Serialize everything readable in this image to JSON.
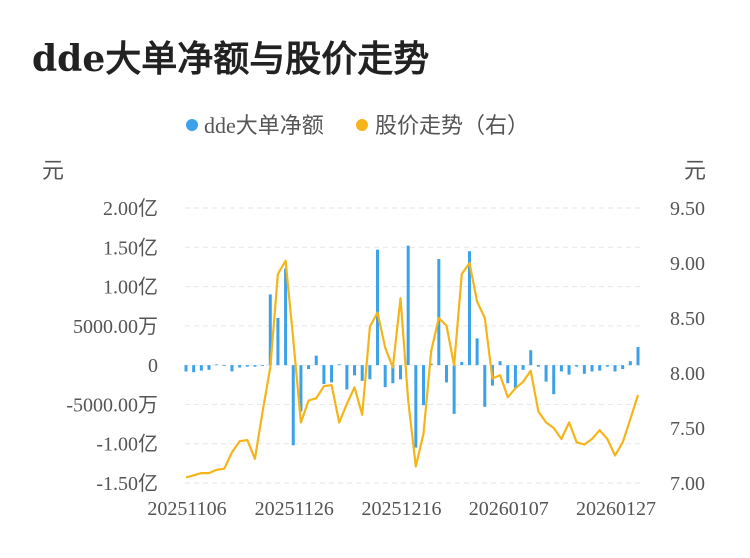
{
  "title": "dde大单净额与股价走势",
  "chart_data": {
    "type": "bar+line",
    "title": "dde大单净额与股价走势",
    "legend_position": "top-center",
    "legend": [
      {
        "name": "dde大单净额",
        "color": "#3ba1e8",
        "marker": "dot"
      },
      {
        "name": "股价走势（右）",
        "color": "#f5b51a",
        "marker": "dot"
      }
    ],
    "left_axis": {
      "unit": "元",
      "ylim": [
        -15000,
        20000
      ],
      "ticks": [
        20000,
        15000,
        10000,
        5000,
        0,
        -5000,
        -10000,
        -15000
      ],
      "tick_labels": [
        "2.00亿",
        "1.50亿",
        "1.00亿",
        "5000.00万",
        "0",
        "-5000.00万",
        "-1.00亿",
        "-1.50亿"
      ]
    },
    "right_axis": {
      "unit": "元",
      "ylim": [
        7.0,
        9.5
      ],
      "ticks": [
        9.5,
        9.0,
        8.5,
        8.0,
        7.5,
        7.0
      ],
      "tick_labels": [
        "9.50",
        "9.00",
        "8.50",
        "8.00",
        "7.50",
        "7.00"
      ]
    },
    "x_tick_labels": [
      "20251106",
      "20251126",
      "20251216",
      "20260107",
      "20260127"
    ],
    "x_tick_indices": [
      0,
      14,
      28,
      42,
      56
    ],
    "grid": true,
    "series": [
      {
        "name": "dde大单净额",
        "type": "bar",
        "axis": "left",
        "color": "#3ba1e8",
        "values": [
          -800,
          -900,
          -700,
          -600,
          100,
          -100,
          -800,
          -300,
          -200,
          -200,
          -100,
          9000,
          6000,
          12300,
          -10200,
          -5900,
          -500,
          1200,
          -2400,
          -2200,
          100,
          -3100,
          -1300,
          -2000,
          -1800,
          14700,
          -2800,
          -2300,
          -1800,
          15200,
          -10500,
          -5100,
          200,
          13500,
          -2200,
          -6200,
          400,
          14500,
          3400,
          -5300,
          -2600,
          500,
          -2300,
          -2900,
          -600,
          1900,
          -200,
          -2100,
          -3700,
          -800,
          -1200,
          -200,
          -1100,
          -800,
          -700,
          -200,
          -800,
          -500,
          500,
          2300
        ]
      },
      {
        "name": "股价走势（右）",
        "type": "line",
        "axis": "right",
        "color": "#f5b51a",
        "values": [
          7.05,
          7.07,
          7.09,
          7.09,
          7.12,
          7.13,
          7.28,
          7.38,
          7.39,
          7.22,
          7.65,
          8.05,
          8.9,
          9.02,
          8.3,
          7.55,
          7.75,
          7.77,
          7.88,
          7.89,
          7.55,
          7.72,
          7.87,
          7.62,
          8.42,
          8.55,
          8.23,
          8.05,
          8.68,
          7.75,
          7.15,
          7.45,
          8.2,
          8.5,
          8.43,
          8.07,
          8.9,
          9.0,
          8.65,
          8.5,
          7.95,
          7.98,
          7.78,
          7.86,
          7.92,
          8.02,
          7.65,
          7.55,
          7.5,
          7.4,
          7.55,
          7.37,
          7.35,
          7.4,
          7.48,
          7.4,
          7.25,
          7.37,
          7.58,
          7.8
        ]
      }
    ]
  }
}
